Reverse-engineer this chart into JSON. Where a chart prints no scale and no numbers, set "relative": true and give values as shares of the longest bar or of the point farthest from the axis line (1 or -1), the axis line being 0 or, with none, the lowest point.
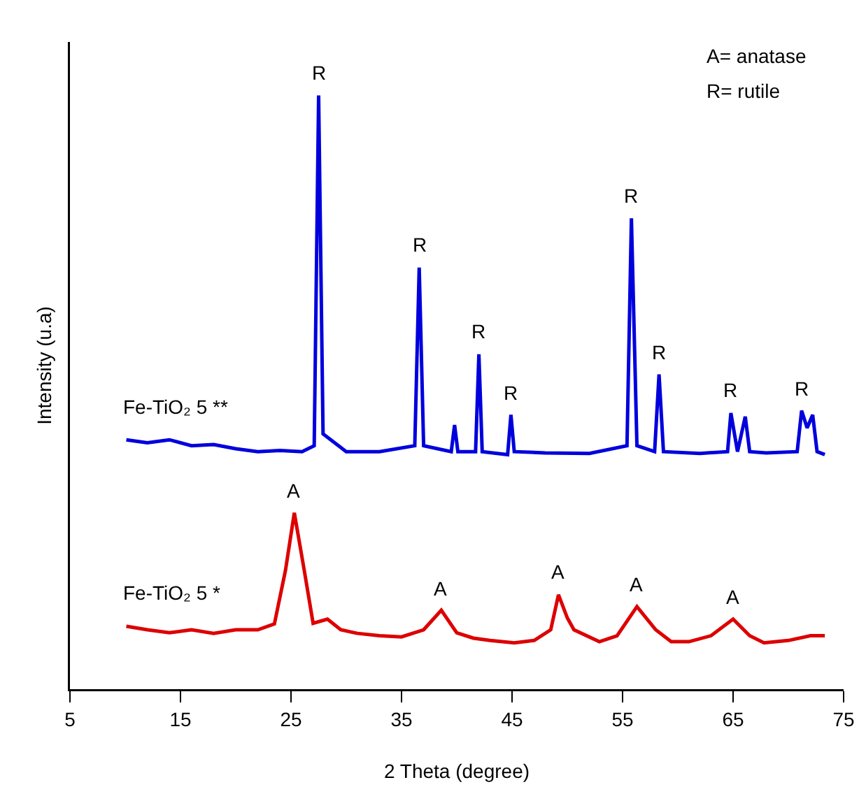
{
  "chart_data": {
    "type": "line",
    "relative": true,
    "xlabel": "2 Theta (degree)",
    "ylabel": "Intensity (u.a)",
    "xlim": [
      5,
      75
    ],
    "xticks": [
      5,
      15,
      25,
      35,
      45,
      55,
      65,
      75
    ],
    "grid": false,
    "legend": false,
    "marker": "none",
    "line_style": "solid",
    "series": [
      {
        "name": "Fe-TiO₂ 5 **",
        "color": "#0000dd",
        "x": [
          10.1,
          12,
          14,
          16,
          18,
          20,
          22,
          24,
          26,
          27.1,
          27.5,
          27.9,
          30,
          33,
          36.2,
          36.6,
          37.0,
          39.5,
          39.8,
          40.1,
          41.7,
          42.0,
          42.3,
          44.6,
          44.9,
          45.2,
          48,
          52,
          55.4,
          55.8,
          56.3,
          57.9,
          58.3,
          58.7,
          62,
          64.5,
          64.8,
          65.4,
          66.1,
          66.5,
          68,
          70.8,
          71.2,
          71.7,
          72.2,
          72.6,
          73.3
        ],
        "values": [
          0.42,
          0.415,
          0.42,
          0.41,
          0.412,
          0.405,
          0.4,
          0.402,
          0.4,
          0.41,
          1.0,
          0.43,
          0.4,
          0.4,
          0.41,
          0.71,
          0.41,
          0.4,
          0.445,
          0.4,
          0.4,
          0.564,
          0.4,
          0.395,
          0.462,
          0.4,
          0.398,
          0.397,
          0.41,
          0.793,
          0.41,
          0.4,
          0.53,
          0.4,
          0.397,
          0.4,
          0.465,
          0.4,
          0.459,
          0.4,
          0.398,
          0.4,
          0.469,
          0.44,
          0.462,
          0.4,
          0.395
        ]
      },
      {
        "name": "Fe-TiO₂ 5 *",
        "color": "#dd0000",
        "x": [
          10.1,
          12,
          14,
          16,
          18,
          20,
          22,
          23.5,
          24.5,
          25.3,
          26.2,
          27.0,
          28.3,
          29.5,
          31,
          33,
          35,
          37,
          38.6,
          40.0,
          41.5,
          43,
          45.2,
          47,
          48.5,
          49.2,
          50.0,
          50.6,
          52.9,
          54.5,
          56.3,
          58,
          59.4,
          61,
          63,
          65.0,
          66.5,
          67.8,
          70,
          72,
          73.3
        ],
        "values": [
          0.106,
          0.1,
          0.095,
          0.1,
          0.094,
          0.1,
          0.1,
          0.11,
          0.2,
          0.297,
          0.2,
          0.111,
          0.118,
          0.1,
          0.094,
          0.09,
          0.088,
          0.1,
          0.133,
          0.095,
          0.086,
          0.082,
          0.078,
          0.082,
          0.1,
          0.159,
          0.12,
          0.1,
          0.08,
          0.09,
          0.139,
          0.1,
          0.08,
          0.08,
          0.09,
          0.118,
          0.09,
          0.078,
          0.082,
          0.09,
          0.09
        ]
      }
    ],
    "annotations": [
      "A= anatase",
      "R= rutile",
      {
        "text": "R",
        "x": 27.5,
        "y": 1.0
      },
      {
        "text": "R",
        "x": 36.6,
        "y": 0.71
      },
      {
        "text": "R",
        "x": 42.0,
        "y": 0.564
      },
      {
        "text": "R",
        "x": 44.9,
        "y": 0.462
      },
      {
        "text": "R",
        "x": 55.8,
        "y": 0.793
      },
      {
        "text": "R",
        "x": 58.3,
        "y": 0.53
      },
      {
        "text": "R",
        "x": 64.8,
        "y": 0.465
      },
      {
        "text": "R",
        "x": 71.2,
        "y": 0.469
      },
      {
        "text": "A",
        "x": 25.3,
        "y": 0.297
      },
      {
        "text": "A",
        "x": 38.6,
        "y": 0.133
      },
      {
        "text": "A",
        "x": 49.2,
        "y": 0.159
      },
      {
        "text": "A",
        "x": 56.3,
        "y": 0.139
      },
      {
        "text": "A",
        "x": 65.0,
        "y": 0.118
      }
    ]
  }
}
